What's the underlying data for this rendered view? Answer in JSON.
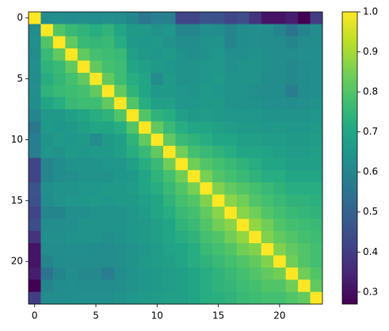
{
  "chart_data": {
    "type": "heatmap",
    "colormap": "viridis",
    "xlim": [
      -0.5,
      23.5
    ],
    "ylim": [
      23.5,
      -0.5
    ],
    "xticks": [
      0,
      5,
      10,
      15,
      20
    ],
    "yticks": [
      0,
      5,
      10,
      15,
      20
    ],
    "clim": [
      0.27,
      1.0
    ],
    "cticks": [
      0.3,
      0.4,
      0.5,
      0.6,
      0.7,
      0.8,
      0.9,
      {
        "value": 1,
        "label": "1.0"
      }
    ],
    "z": [
      [
        1,
        0.62,
        0.63,
        0.62,
        0.63,
        0.62,
        0.63,
        0.62,
        0.6,
        0.56,
        0.58,
        0.58,
        0.42,
        0.42,
        0.46,
        0.45,
        0.42,
        0.44,
        0.38,
        0.31,
        0.31,
        0.33,
        0.27,
        0.4
      ],
      [
        0.62,
        1,
        0.8,
        0.76,
        0.74,
        0.72,
        0.74,
        0.7,
        0.66,
        0.66,
        0.64,
        0.65,
        0.6,
        0.6,
        0.63,
        0.62,
        0.6,
        0.62,
        0.63,
        0.62,
        0.6,
        0.55,
        0.6,
        0.62
      ],
      [
        0.63,
        0.8,
        1,
        0.82,
        0.76,
        0.75,
        0.76,
        0.72,
        0.66,
        0.65,
        0.66,
        0.64,
        0.62,
        0.62,
        0.64,
        0.64,
        0.6,
        0.62,
        0.63,
        0.62,
        0.62,
        0.6,
        0.62,
        0.62
      ],
      [
        0.62,
        0.76,
        0.82,
        1,
        0.82,
        0.78,
        0.77,
        0.76,
        0.68,
        0.66,
        0.65,
        0.66,
        0.64,
        0.63,
        0.64,
        0.65,
        0.63,
        0.63,
        0.64,
        0.63,
        0.62,
        0.62,
        0.63,
        0.63
      ],
      [
        0.63,
        0.74,
        0.76,
        0.82,
        1,
        0.82,
        0.78,
        0.77,
        0.7,
        0.68,
        0.66,
        0.65,
        0.64,
        0.64,
        0.65,
        0.65,
        0.63,
        0.64,
        0.64,
        0.63,
        0.62,
        0.61,
        0.62,
        0.63
      ],
      [
        0.62,
        0.72,
        0.75,
        0.78,
        0.82,
        1,
        0.82,
        0.77,
        0.72,
        0.7,
        0.62,
        0.66,
        0.64,
        0.64,
        0.65,
        0.66,
        0.64,
        0.64,
        0.64,
        0.62,
        0.62,
        0.61,
        0.62,
        0.63
      ],
      [
        0.63,
        0.74,
        0.76,
        0.77,
        0.78,
        0.82,
        1,
        0.82,
        0.74,
        0.7,
        0.66,
        0.66,
        0.65,
        0.64,
        0.66,
        0.65,
        0.64,
        0.64,
        0.63,
        0.62,
        0.62,
        0.58,
        0.62,
        0.63
      ],
      [
        0.62,
        0.7,
        0.72,
        0.76,
        0.77,
        0.77,
        0.82,
        1,
        0.8,
        0.72,
        0.68,
        0.68,
        0.65,
        0.65,
        0.66,
        0.66,
        0.64,
        0.64,
        0.64,
        0.63,
        0.63,
        0.62,
        0.63,
        0.64
      ],
      [
        0.6,
        0.66,
        0.66,
        0.68,
        0.7,
        0.72,
        0.74,
        0.8,
        1,
        0.8,
        0.74,
        0.72,
        0.68,
        0.66,
        0.67,
        0.66,
        0.65,
        0.65,
        0.65,
        0.64,
        0.64,
        0.64,
        0.64,
        0.65
      ],
      [
        0.56,
        0.66,
        0.65,
        0.66,
        0.68,
        0.7,
        0.7,
        0.72,
        0.8,
        1,
        0.82,
        0.76,
        0.72,
        0.7,
        0.7,
        0.68,
        0.67,
        0.66,
        0.66,
        0.65,
        0.66,
        0.65,
        0.65,
        0.66
      ],
      [
        0.58,
        0.64,
        0.66,
        0.65,
        0.66,
        0.62,
        0.66,
        0.68,
        0.74,
        0.82,
        1,
        0.82,
        0.76,
        0.74,
        0.72,
        0.7,
        0.7,
        0.68,
        0.68,
        0.67,
        0.67,
        0.66,
        0.66,
        0.67
      ],
      [
        0.58,
        0.65,
        0.64,
        0.66,
        0.65,
        0.66,
        0.66,
        0.68,
        0.72,
        0.76,
        0.82,
        1,
        0.84,
        0.78,
        0.76,
        0.74,
        0.72,
        0.7,
        0.7,
        0.69,
        0.68,
        0.67,
        0.67,
        0.68
      ],
      [
        0.42,
        0.6,
        0.62,
        0.64,
        0.64,
        0.64,
        0.65,
        0.65,
        0.68,
        0.72,
        0.76,
        0.84,
        1,
        0.84,
        0.8,
        0.78,
        0.76,
        0.74,
        0.72,
        0.7,
        0.7,
        0.68,
        0.68,
        0.68
      ],
      [
        0.42,
        0.6,
        0.62,
        0.63,
        0.64,
        0.64,
        0.64,
        0.65,
        0.66,
        0.7,
        0.74,
        0.78,
        0.84,
        1,
        0.85,
        0.8,
        0.78,
        0.76,
        0.74,
        0.72,
        0.72,
        0.7,
        0.7,
        0.7
      ],
      [
        0.46,
        0.63,
        0.64,
        0.64,
        0.65,
        0.65,
        0.66,
        0.66,
        0.67,
        0.7,
        0.72,
        0.76,
        0.8,
        0.85,
        1,
        0.86,
        0.82,
        0.8,
        0.78,
        0.76,
        0.74,
        0.72,
        0.72,
        0.72
      ],
      [
        0.45,
        0.62,
        0.64,
        0.65,
        0.65,
        0.66,
        0.65,
        0.66,
        0.66,
        0.68,
        0.7,
        0.74,
        0.78,
        0.8,
        0.86,
        1,
        0.87,
        0.84,
        0.8,
        0.78,
        0.76,
        0.74,
        0.74,
        0.73
      ],
      [
        0.42,
        0.6,
        0.6,
        0.63,
        0.63,
        0.64,
        0.64,
        0.64,
        0.65,
        0.67,
        0.7,
        0.72,
        0.76,
        0.78,
        0.82,
        0.87,
        1,
        0.87,
        0.84,
        0.8,
        0.78,
        0.76,
        0.75,
        0.74
      ],
      [
        0.44,
        0.62,
        0.62,
        0.63,
        0.64,
        0.64,
        0.64,
        0.64,
        0.65,
        0.66,
        0.68,
        0.7,
        0.74,
        0.76,
        0.8,
        0.84,
        0.87,
        1,
        0.88,
        0.84,
        0.8,
        0.78,
        0.77,
        0.76
      ],
      [
        0.38,
        0.63,
        0.63,
        0.64,
        0.64,
        0.64,
        0.63,
        0.64,
        0.65,
        0.66,
        0.68,
        0.7,
        0.72,
        0.74,
        0.78,
        0.8,
        0.84,
        0.88,
        1,
        0.86,
        0.82,
        0.8,
        0.78,
        0.77
      ],
      [
        0.31,
        0.62,
        0.62,
        0.63,
        0.63,
        0.62,
        0.62,
        0.63,
        0.64,
        0.65,
        0.67,
        0.69,
        0.7,
        0.72,
        0.76,
        0.78,
        0.8,
        0.84,
        0.86,
        1,
        0.86,
        0.82,
        0.8,
        0.78
      ],
      [
        0.31,
        0.6,
        0.62,
        0.62,
        0.62,
        0.62,
        0.62,
        0.63,
        0.64,
        0.66,
        0.67,
        0.68,
        0.7,
        0.72,
        0.74,
        0.76,
        0.78,
        0.8,
        0.82,
        0.86,
        1,
        0.84,
        0.8,
        0.78
      ],
      [
        0.33,
        0.55,
        0.6,
        0.62,
        0.61,
        0.61,
        0.58,
        0.62,
        0.64,
        0.65,
        0.66,
        0.67,
        0.68,
        0.7,
        0.72,
        0.74,
        0.76,
        0.78,
        0.8,
        0.82,
        0.84,
        1,
        0.84,
        0.8
      ],
      [
        0.27,
        0.6,
        0.62,
        0.63,
        0.62,
        0.62,
        0.62,
        0.63,
        0.64,
        0.65,
        0.66,
        0.67,
        0.68,
        0.7,
        0.72,
        0.74,
        0.75,
        0.77,
        0.78,
        0.8,
        0.8,
        0.84,
        1,
        0.82
      ],
      [
        0.4,
        0.62,
        0.62,
        0.63,
        0.63,
        0.63,
        0.63,
        0.64,
        0.65,
        0.66,
        0.67,
        0.68,
        0.68,
        0.7,
        0.72,
        0.73,
        0.74,
        0.76,
        0.77,
        0.78,
        0.78,
        0.8,
        0.82,
        1
      ]
    ]
  }
}
